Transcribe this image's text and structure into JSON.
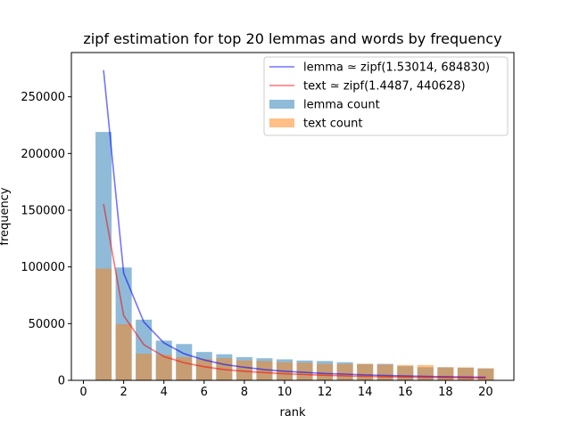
{
  "chart_data": {
    "type": "bar",
    "title": "zipf estimation for top 20 lemmas and words by frequency",
    "xlabel": "rank",
    "ylabel": "frequency",
    "xlim": [
      -0.6,
      21.4
    ],
    "ylim": [
      0,
      289000
    ],
    "xticks": [
      0,
      2,
      4,
      6,
      8,
      10,
      12,
      14,
      16,
      18,
      20
    ],
    "yticks": [
      0,
      50000,
      100000,
      150000,
      200000,
      250000
    ],
    "legend_position": "top-right",
    "x": [
      1,
      2,
      3,
      4,
      5,
      6,
      7,
      8,
      9,
      10,
      11,
      12,
      13,
      14,
      15,
      16,
      17,
      18,
      19,
      20
    ],
    "bar_series": [
      {
        "name": "lemma count",
        "color": "#1f77b4",
        "opacity": 0.5,
        "values": [
          219000,
          99500,
          53500,
          35000,
          32000,
          25000,
          23000,
          20500,
          19500,
          18500,
          17500,
          17000,
          16000,
          14500,
          14500,
          12500,
          11500,
          11500,
          11000,
          10500
        ]
      },
      {
        "name": "text count",
        "color": "#ff7f0e",
        "opacity": 0.5,
        "values": [
          98500,
          49500,
          23500,
          22500,
          20500,
          19000,
          19500,
          17500,
          17000,
          16000,
          15500,
          14500,
          14500,
          14500,
          14000,
          13500,
          13500,
          11500,
          11500,
          10500
        ]
      }
    ],
    "line_series": [
      {
        "name": "lemma ≃ zipf(1.53014, 684830)",
        "color": "#0000ff",
        "opacity": 0.55,
        "values": [
          273500,
          94500,
          51500,
          33000,
          23500,
          18000,
          14000,
          11500,
          9500,
          8000,
          7000,
          6000,
          5500,
          4800,
          4300,
          3900,
          3500,
          3200,
          2900,
          2700
        ]
      },
      {
        "name": "text ≃ zipf(1.4487, 440628)",
        "color": "#ff0000",
        "opacity": 0.55,
        "values": [
          155500,
          57000,
          31500,
          21000,
          15500,
          12000,
          9500,
          8000,
          6800,
          5800,
          5100,
          4500,
          4000,
          3600,
          3200,
          2900,
          2700,
          2500,
          2300,
          2100
        ]
      }
    ]
  }
}
